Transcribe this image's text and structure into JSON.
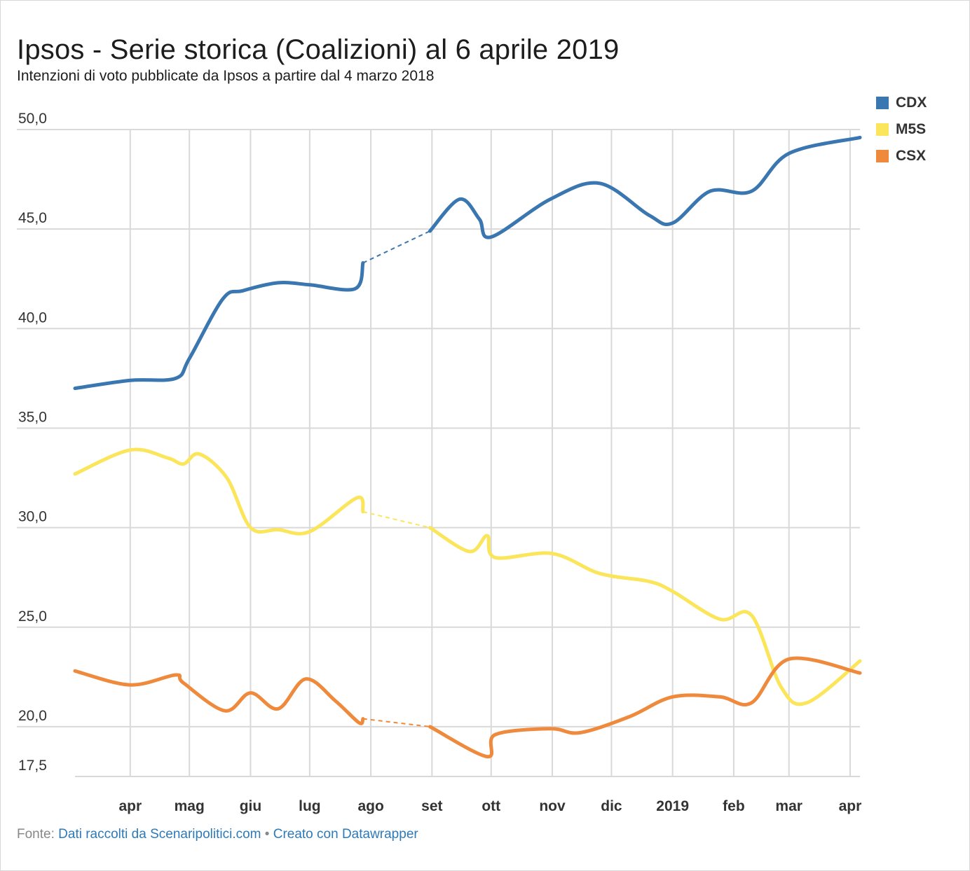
{
  "title": "Ipsos - Serie storica (Coalizioni) al 6 aprile 2019",
  "subtitle": "Intenzioni di voto pubblicate da Ipsos a partire dal 4 marzo 2018",
  "footer": {
    "prefix": "Fonte:",
    "source_link": "Dati raccolti da Scenaripolitici.com",
    "separator": "•",
    "made_with_link": "Creato con Datawrapper"
  },
  "colors": {
    "CDX": "#3a76b0",
    "M5S": "#fbe55a",
    "CSX": "#ef8a3c",
    "grid": "#d9d9d9"
  },
  "chart_data": {
    "type": "line",
    "title": "Ipsos - Serie storica (Coalizioni) al 6 aprile 2019",
    "ylim": [
      17.5,
      50.0
    ],
    "y_ticks": [
      "50,0",
      "45,0",
      "40,0",
      "35,0",
      "30,0",
      "25,0",
      "20,0",
      "17,5"
    ],
    "y_tick_values": [
      50,
      45,
      40,
      35,
      30,
      25,
      20,
      17.5
    ],
    "x_ticks": [
      {
        "date": "2018-04-01",
        "label": "apr"
      },
      {
        "date": "2018-05-01",
        "label": "mag"
      },
      {
        "date": "2018-06-01",
        "label": "giu"
      },
      {
        "date": "2018-07-01",
        "label": "lug"
      },
      {
        "date": "2018-08-01",
        "label": "ago"
      },
      {
        "date": "2018-09-01",
        "label": "set"
      },
      {
        "date": "2018-10-01",
        "label": "ott"
      },
      {
        "date": "2018-11-01",
        "label": "nov"
      },
      {
        "date": "2018-12-01",
        "label": "dic"
      },
      {
        "date": "2019-01-01",
        "label": "2019"
      },
      {
        "date": "2019-02-01",
        "label": "feb"
      },
      {
        "date": "2019-03-01",
        "label": "mar"
      },
      {
        "date": "2019-04-01",
        "label": "apr"
      }
    ],
    "xlim": [
      "2018-03-04",
      "2019-04-06"
    ],
    "grid": true,
    "legend_position": "top-right",
    "gap": [
      "2018-07-28",
      "2018-08-31"
    ],
    "series": [
      {
        "name": "CDX",
        "points": [
          [
            "2018-03-04",
            37.0
          ],
          [
            "2018-04-01",
            37.4
          ],
          [
            "2018-04-24",
            37.5
          ],
          [
            "2018-05-01",
            38.5
          ],
          [
            "2018-05-18",
            41.5
          ],
          [
            "2018-05-28",
            41.9
          ],
          [
            "2018-06-15",
            42.3
          ],
          [
            "2018-07-01",
            42.2
          ],
          [
            "2018-07-24",
            42.0
          ],
          [
            "2018-07-28",
            43.3
          ],
          [
            "2018-08-31",
            44.9
          ],
          [
            "2018-09-15",
            46.5
          ],
          [
            "2018-09-25",
            45.5
          ],
          [
            "2018-10-01",
            44.6
          ],
          [
            "2018-10-31",
            46.5
          ],
          [
            "2018-11-25",
            47.3
          ],
          [
            "2018-12-20",
            45.7
          ],
          [
            "2019-01-01",
            45.3
          ],
          [
            "2019-01-20",
            46.9
          ],
          [
            "2019-02-10",
            46.9
          ],
          [
            "2019-03-01",
            48.8
          ],
          [
            "2019-04-06",
            49.6
          ]
        ]
      },
      {
        "name": "M5S",
        "points": [
          [
            "2018-03-04",
            32.7
          ],
          [
            "2018-04-01",
            33.9
          ],
          [
            "2018-04-20",
            33.5
          ],
          [
            "2018-04-28",
            33.2
          ],
          [
            "2018-05-06",
            33.7
          ],
          [
            "2018-05-20",
            32.5
          ],
          [
            "2018-06-01",
            30.0
          ],
          [
            "2018-06-15",
            29.9
          ],
          [
            "2018-07-01",
            29.8
          ],
          [
            "2018-07-25",
            31.5
          ],
          [
            "2018-07-28",
            30.8
          ],
          [
            "2018-08-31",
            30.0
          ],
          [
            "2018-09-20",
            28.8
          ],
          [
            "2018-09-29",
            29.6
          ],
          [
            "2018-10-03",
            28.5
          ],
          [
            "2018-11-01",
            28.7
          ],
          [
            "2018-11-25",
            27.7
          ],
          [
            "2018-12-20",
            27.3
          ],
          [
            "2019-01-01",
            26.8
          ],
          [
            "2019-01-25",
            25.4
          ],
          [
            "2019-02-10",
            25.6
          ],
          [
            "2019-02-25",
            22.0
          ],
          [
            "2019-03-10",
            21.2
          ],
          [
            "2019-04-06",
            23.3
          ]
        ]
      },
      {
        "name": "CSX",
        "points": [
          [
            "2018-03-04",
            22.8
          ],
          [
            "2018-04-01",
            22.1
          ],
          [
            "2018-04-24",
            22.6
          ],
          [
            "2018-04-28",
            22.2
          ],
          [
            "2018-05-19",
            20.8
          ],
          [
            "2018-06-01",
            21.7
          ],
          [
            "2018-06-15",
            20.9
          ],
          [
            "2018-06-29",
            22.4
          ],
          [
            "2018-07-14",
            21.3
          ],
          [
            "2018-07-26",
            20.2
          ],
          [
            "2018-07-28",
            20.4
          ],
          [
            "2018-08-31",
            20.0
          ],
          [
            "2018-09-29",
            18.5
          ],
          [
            "2018-10-03",
            19.6
          ],
          [
            "2018-10-31",
            19.9
          ],
          [
            "2018-11-15",
            19.7
          ],
          [
            "2018-12-10",
            20.5
          ],
          [
            "2019-01-01",
            21.5
          ],
          [
            "2019-01-25",
            21.5
          ],
          [
            "2019-02-10",
            21.2
          ],
          [
            "2019-03-01",
            23.4
          ],
          [
            "2019-04-06",
            22.7
          ]
        ]
      }
    ]
  }
}
